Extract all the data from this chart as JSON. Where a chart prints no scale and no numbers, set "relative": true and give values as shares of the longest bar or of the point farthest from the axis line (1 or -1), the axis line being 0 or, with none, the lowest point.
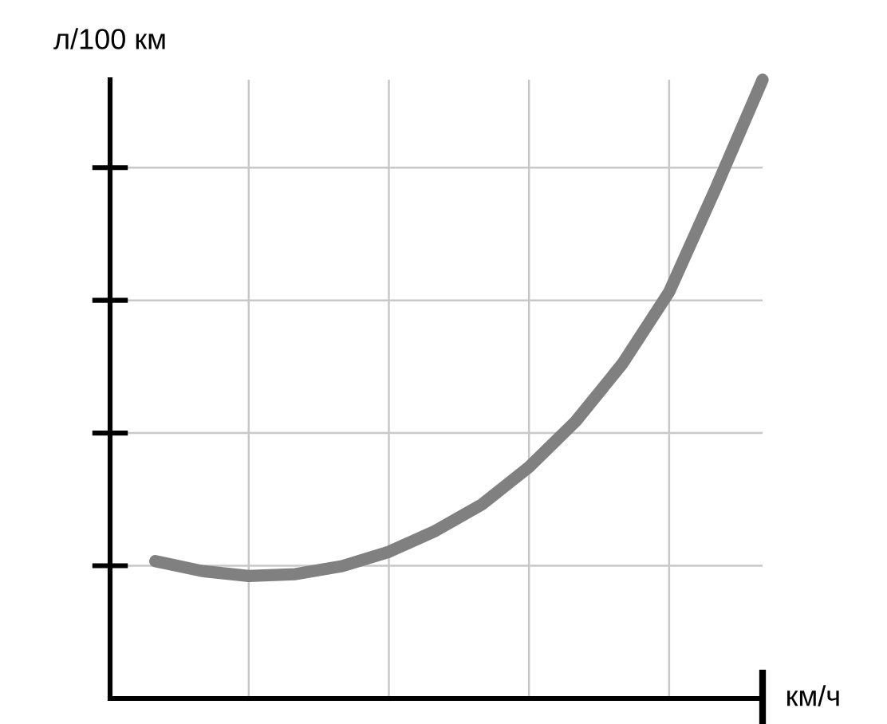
{
  "chart_data": {
    "type": "line",
    "relative": true,
    "xlabel": "км/ч",
    "ylabel": "л/100 км",
    "categories": [
      null,
      null,
      null,
      null,
      null,
      null,
      null,
      null,
      null,
      null,
      null,
      null,
      null,
      null
    ],
    "grid": true,
    "marker": "none",
    "line_style": "solid",
    "series": [
      {
        "color": "#808080",
        "values": [
          0.222,
          0.206,
          0.198,
          0.201,
          0.214,
          0.237,
          0.271,
          0.314,
          0.374,
          0.448,
          0.541,
          0.657,
          0.825,
          1
        ]
      }
    ]
  }
}
